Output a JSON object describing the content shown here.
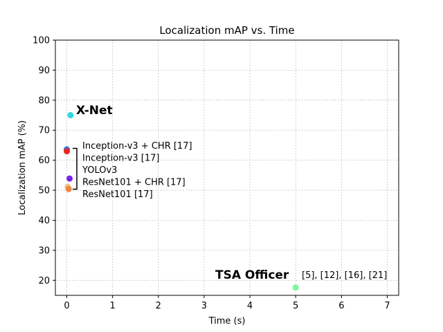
{
  "chart_data": {
    "type": "scatter",
    "title": "Localization mAP vs. Time",
    "xlabel": "Time (s)",
    "ylabel": "Localization mAP (%)",
    "xlim": [
      -0.25,
      7.25
    ],
    "ylim": [
      15,
      100
    ],
    "xticks": [
      "0",
      "1",
      "2",
      "3",
      "4",
      "5",
      "6",
      "7"
    ],
    "yticks": [
      "20",
      "30",
      "40",
      "50",
      "60",
      "70",
      "80",
      "90",
      "100"
    ],
    "grid": true,
    "points": [
      {
        "name": "X-Net",
        "x": 0.08,
        "y": 75.0,
        "color": "#2fd8d8"
      },
      {
        "name": "Inception-v3 + CHR [17]",
        "x": 0.0,
        "y": 63.6,
        "color": "#3a6ee0"
      },
      {
        "name": "Inception-v3 [17]",
        "x": 0.0,
        "y": 63.0,
        "color": "#e8261e"
      },
      {
        "name": "YOLOv3",
        "x": 0.06,
        "y": 53.9,
        "color": "#7b1ff0"
      },
      {
        "name": "ResNet101 + CHR [17]",
        "x": 0.02,
        "y": 51.2,
        "color": "#f2c28a"
      },
      {
        "name": "ResNet101 [17]",
        "x": 0.04,
        "y": 50.4,
        "color": "#f0883a"
      },
      {
        "name": "TSA Officer",
        "x": 5.0,
        "y": 17.6,
        "color": "#80f59a"
      }
    ],
    "annotations": {
      "xnet": "X-Net",
      "tsa": "TSA Officer",
      "tsa_refs": "[5], [12], [16], [21]",
      "group": [
        "Inception-v3 + CHR [17]",
        "Inception-v3 [17]",
        "YOLOv3",
        "ResNet101 + CHR [17]",
        "ResNet101 [17]"
      ]
    }
  }
}
